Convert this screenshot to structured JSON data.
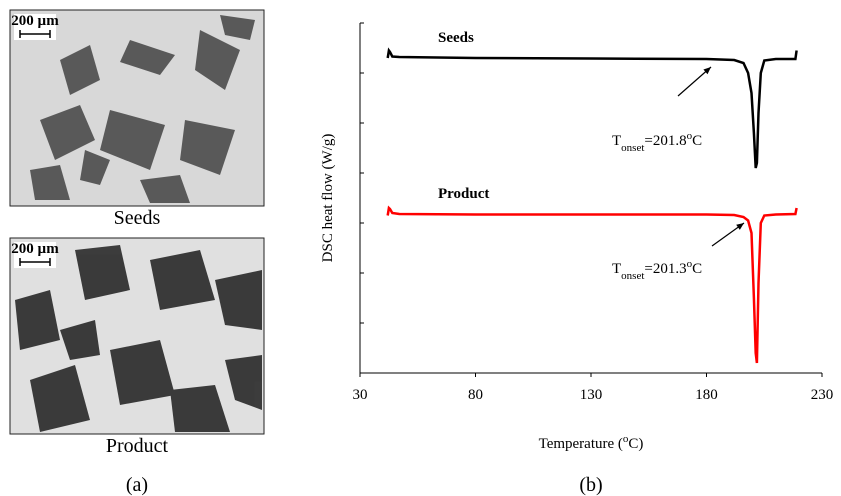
{
  "micrographs": {
    "caption": "(a)",
    "panels": [
      {
        "label": "Seeds",
        "scale_bar": "200 µm"
      },
      {
        "label": "Product",
        "scale_bar": "200 µm"
      }
    ]
  },
  "chart_data": {
    "type": "line",
    "caption": "(b)",
    "y_label": "DSC heat flow (W/g)",
    "x_label_parts": [
      "Temperature (",
      "o",
      "C)"
    ],
    "x": [
      42,
      42.5,
      43,
      44,
      47,
      80,
      130,
      180,
      192,
      196,
      198,
      199.5,
      200.5,
      201.3,
      201.8,
      202.5,
      203.5,
      205,
      210,
      218.5,
      219
    ],
    "series": [
      {
        "name": "Seeds",
        "color": "#000000",
        "values": [
          6.3,
          6.45,
          6.42,
          6.33,
          6.32,
          6.3,
          6.29,
          6.28,
          6.26,
          6.2,
          6.0,
          5.6,
          4.8,
          4.1,
          4.2,
          5.2,
          6.0,
          6.25,
          6.28,
          6.28,
          6.45
        ]
      },
      {
        "name": "Product",
        "color": "#ff0000",
        "values": [
          3.15,
          3.3,
          3.28,
          3.2,
          3.18,
          3.17,
          3.17,
          3.17,
          3.16,
          3.12,
          3.05,
          2.8,
          1.5,
          0.4,
          0.2,
          1.8,
          3.0,
          3.15,
          3.17,
          3.18,
          3.3
        ]
      }
    ],
    "xlim": [
      30,
      230
    ],
    "xticks": [
      30,
      80,
      130,
      180,
      230
    ],
    "ylim": [
      0,
      7
    ],
    "yticks": [
      0,
      1,
      2,
      3,
      4,
      5,
      6,
      7
    ],
    "ytick_labels": false,
    "annotations": [
      {
        "parts": [
          "T",
          "onset",
          "=201.8",
          "o",
          "C"
        ]
      },
      {
        "parts": [
          "T",
          "onset",
          "=201.3",
          "o",
          "C"
        ]
      }
    ]
  }
}
